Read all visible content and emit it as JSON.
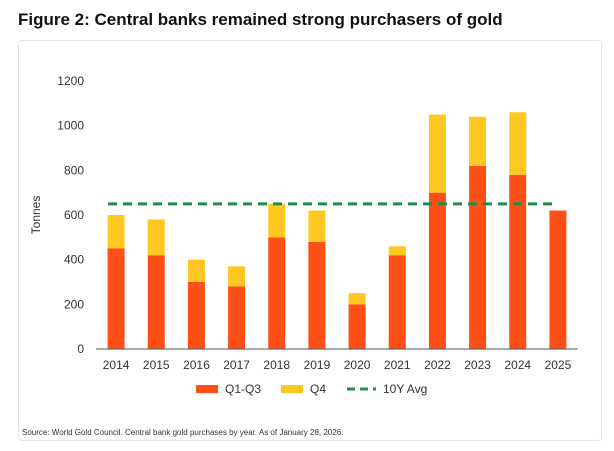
{
  "figure_title": "Figure 2: Central banks remained strong purchasers of gold",
  "source_note": "Source: World Gold Council. Central bank gold purchases by year. As of January 28, 2026.",
  "colors": {
    "q1q3": "#fd4f16",
    "q4": "#fec820",
    "avg": "#1e8c4c",
    "axis": "#333333"
  },
  "chart_data": {
    "type": "bar",
    "stacked": true,
    "title": "Figure 2: Central banks remained strong purchasers of gold",
    "xlabel": "",
    "ylabel": "Tonnes",
    "ylim": [
      0,
      1200
    ],
    "yticks": [
      0,
      200,
      400,
      600,
      800,
      1000,
      1200
    ],
    "ytick_labels": [
      "0",
      "200",
      "400",
      "600",
      "800",
      "1000",
      "1200"
    ],
    "categories": [
      "2014",
      "2015",
      "2016",
      "2017",
      "2018",
      "2019",
      "2020",
      "2021",
      "2022",
      "2023",
      "2024",
      "2025"
    ],
    "series": [
      {
        "name": "Q1-Q3",
        "values": [
          450,
          420,
          300,
          280,
          500,
          480,
          200,
          420,
          700,
          820,
          780,
          620
        ]
      },
      {
        "name": "Q4",
        "values": [
          150,
          160,
          100,
          90,
          150,
          140,
          50,
          40,
          350,
          220,
          280,
          0
        ]
      }
    ],
    "reference_line": {
      "name": "10Y Avg",
      "value": 650,
      "style": "dashed"
    },
    "legend": {
      "position": "bottom",
      "items": [
        "Q1-Q3",
        "Q4",
        "10Y Avg"
      ]
    },
    "grid": false
  }
}
